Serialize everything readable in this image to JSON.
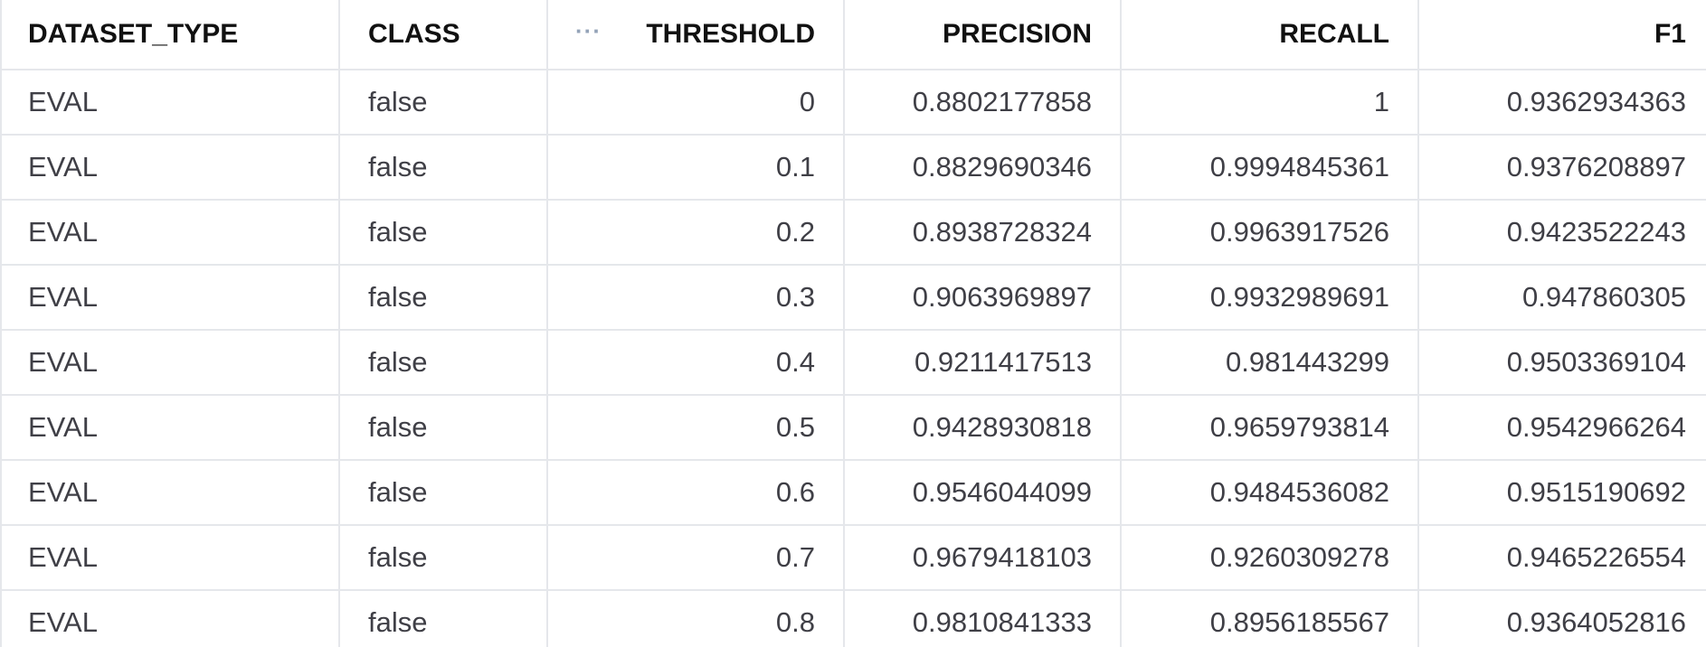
{
  "table": {
    "columns": [
      "DATASET_TYPE",
      "CLASS",
      "THRESHOLD",
      "PRECISION",
      "RECALL",
      "F1"
    ],
    "column_menu_icon": "more-horizontal-icon",
    "rows": [
      [
        "EVAL",
        "false",
        "0",
        "0.8802177858",
        "1",
        "0.9362934363"
      ],
      [
        "EVAL",
        "false",
        "0.1",
        "0.8829690346",
        "0.9994845361",
        "0.9376208897"
      ],
      [
        "EVAL",
        "false",
        "0.2",
        "0.8938728324",
        "0.9963917526",
        "0.9423522243"
      ],
      [
        "EVAL",
        "false",
        "0.3",
        "0.9063969897",
        "0.9932989691",
        "0.947860305"
      ],
      [
        "EVAL",
        "false",
        "0.4",
        "0.9211417513",
        "0.981443299",
        "0.9503369104"
      ],
      [
        "EVAL",
        "false",
        "0.5",
        "0.9428930818",
        "0.9659793814",
        "0.9542966264"
      ],
      [
        "EVAL",
        "false",
        "0.6",
        "0.9546044099",
        "0.9484536082",
        "0.9515190692"
      ],
      [
        "EVAL",
        "false",
        "0.7",
        "0.9679418103",
        "0.9260309278",
        "0.9465226554"
      ],
      [
        "EVAL",
        "false",
        "0.8",
        "0.9810841333",
        "0.8956185567",
        "0.9364052816"
      ]
    ]
  }
}
